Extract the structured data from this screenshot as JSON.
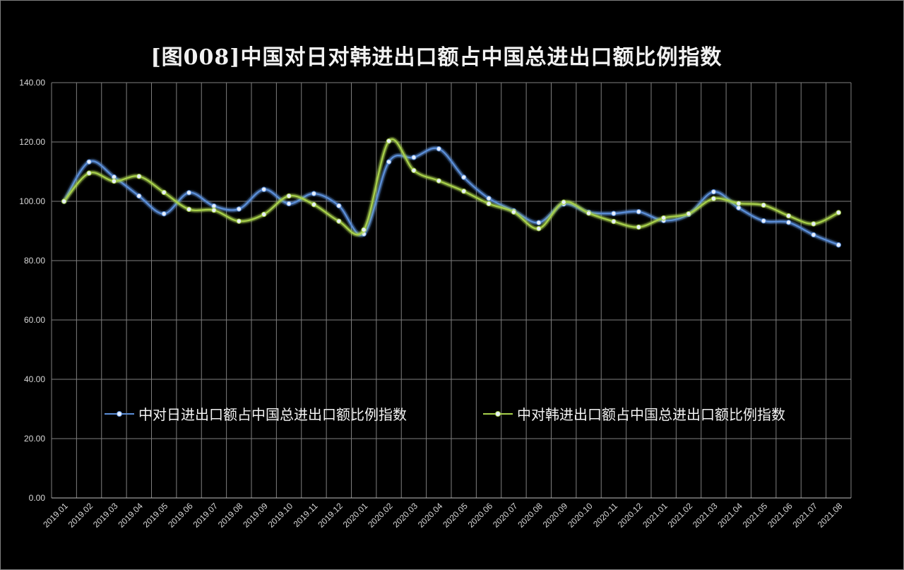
{
  "chart_data": {
    "type": "line",
    "title": "[图008]中国对日对韩进出口额占中国总进出口额比例指数",
    "xlabel": "",
    "ylabel": "",
    "ylim": [
      0,
      140
    ],
    "yticks": [
      "0.00",
      "20.00",
      "40.00",
      "60.00",
      "80.00",
      "100.00",
      "120.00",
      "140.00"
    ],
    "grid": true,
    "legend_position": "inside-bottom",
    "categories": [
      "2019.01",
      "2019.02",
      "2019.03",
      "2019.04",
      "2019.05",
      "2019.06",
      "2019.07",
      "2019.08",
      "2019.09",
      "2019.10",
      "2019.11",
      "2019.12",
      "2020.01",
      "2020.02",
      "2020.03",
      "2020.04",
      "2020.05",
      "2020.06",
      "2020.07",
      "2020.08",
      "2020.09",
      "2020.10",
      "2020.11",
      "2020.12",
      "2021.01",
      "2021.02",
      "2021.03",
      "2021.04",
      "2021.05",
      "2021.06",
      "2021.07",
      "2021.08"
    ],
    "series": [
      {
        "name": "中对日进出口额占中国总进出口额比例指数",
        "color": "#5b8fd9",
        "values": [
          100.0,
          113.3,
          108.2,
          101.8,
          95.8,
          102.9,
          98.4,
          97.4,
          104.0,
          99.2,
          102.6,
          98.5,
          89.0,
          113.3,
          114.8,
          117.7,
          108.1,
          101.0,
          96.8,
          92.8,
          99.1,
          96.3,
          95.9,
          96.5,
          93.5,
          95.6,
          103.2,
          97.8,
          93.4,
          92.9,
          88.7,
          85.3
        ]
      },
      {
        "name": "中对韩进出口额占中国总进出口额比例指数",
        "color": "#a8d14c",
        "values": [
          100.0,
          109.5,
          106.8,
          108.4,
          103.0,
          97.3,
          97.0,
          93.3,
          95.6,
          101.8,
          98.9,
          93.3,
          90.4,
          120.3,
          110.4,
          106.9,
          103.4,
          99.2,
          96.4,
          90.8,
          99.7,
          96.0,
          93.2,
          91.3,
          94.4,
          95.8,
          100.9,
          99.3,
          98.7,
          95.1,
          92.4,
          96.2
        ]
      }
    ]
  }
}
